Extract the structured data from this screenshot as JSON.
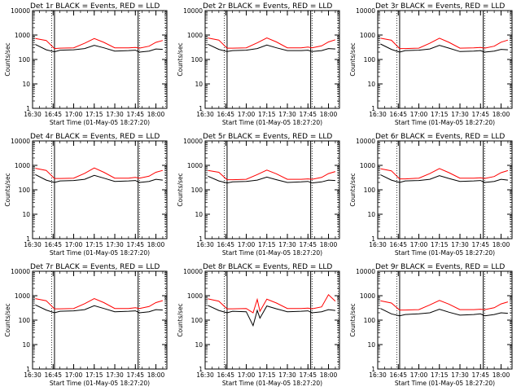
{
  "figure": {
    "xlabel": "Start Time (01-May-05 18:27:20)",
    "ylabel": "Counts/sec"
  },
  "chart_data": [
    {
      "type": "line",
      "title": "Det 1r  BLACK = Events, RED = LLD",
      "variant": 1,
      "x_ticks": [
        "16:30",
        "16:45",
        "17:00",
        "17:15",
        "17:30",
        "17:45",
        "18:00"
      ],
      "y_ticks": [
        "1",
        "10",
        "100",
        "1000",
        "10000"
      ],
      "y_scale": "log",
      "ylim": [
        1,
        10000
      ],
      "vlines_solid": [
        "16:46",
        "17:47"
      ],
      "vlines_dotted": [
        "16:44",
        "17:48",
        "18:07"
      ],
      "series": [
        {
          "name": "Events",
          "color": "#000000"
        },
        {
          "name": "LLD",
          "color": "#ff0000"
        }
      ],
      "samples": {
        "time": [
          "16:32",
          "16:40",
          "16:46",
          "16:50",
          "17:00",
          "17:08",
          "17:15",
          "17:22",
          "17:30",
          "17:40",
          "17:45",
          "17:48",
          "17:55",
          "18:00",
          "18:05"
        ],
        "events": [
          410,
          250,
          205,
          240,
          250,
          280,
          380,
          300,
          220,
          230,
          240,
          200,
          220,
          270,
          260
        ],
        "lld": [
          720,
          600,
          280,
          290,
          300,
          460,
          720,
          500,
          300,
          300,
          310,
          290,
          350,
          500,
          600
        ]
      }
    },
    {
      "type": "line",
      "title": "Det 2r  BLACK = Events, RED = LLD",
      "variant": 2,
      "x_ticks": [
        "16:30",
        "16:45",
        "17:00",
        "17:15",
        "17:30",
        "17:45",
        "18:00"
      ],
      "y_ticks": [
        "1",
        "10",
        "100",
        "1000",
        "10000"
      ],
      "y_scale": "log",
      "ylim": [
        1,
        10000
      ],
      "vlines_solid": [
        "16:46",
        "17:47"
      ],
      "vlines_dotted": [
        "16:44",
        "17:48",
        "18:07"
      ],
      "series": [
        {
          "name": "Events",
          "color": "#000000"
        },
        {
          "name": "LLD",
          "color": "#ff0000"
        }
      ],
      "samples": {
        "time": [
          "16:32",
          "16:40",
          "16:46",
          "16:50",
          "17:00",
          "17:08",
          "17:15",
          "17:22",
          "17:30",
          "17:40",
          "17:45",
          "17:48",
          "17:55",
          "18:00",
          "18:05"
        ],
        "events": [
          420,
          260,
          210,
          230,
          240,
          280,
          390,
          300,
          230,
          230,
          240,
          210,
          230,
          280,
          270
        ],
        "lld": [
          760,
          620,
          290,
          290,
          300,
          480,
          760,
          520,
          300,
          300,
          320,
          300,
          360,
          520,
          640
        ]
      }
    },
    {
      "type": "line",
      "title": "Det 3r  BLACK = Events, RED = LLD",
      "variant": 3,
      "x_ticks": [
        "16:30",
        "16:45",
        "17:00",
        "17:15",
        "17:30",
        "17:45",
        "18:00"
      ],
      "y_ticks": [
        "1",
        "10",
        "100",
        "1000",
        "10000"
      ],
      "y_scale": "log",
      "ylim": [
        1,
        10000
      ],
      "vlines_solid": [
        "16:46",
        "17:47"
      ],
      "vlines_dotted": [
        "16:44",
        "17:48",
        "18:07"
      ],
      "series": [
        {
          "name": "Events",
          "color": "#000000"
        },
        {
          "name": "LLD",
          "color": "#ff0000"
        }
      ],
      "samples": {
        "time": [
          "16:32",
          "16:40",
          "16:46",
          "16:50",
          "17:00",
          "17:08",
          "17:15",
          "17:22",
          "17:30",
          "17:40",
          "17:45",
          "17:48",
          "17:55",
          "18:00",
          "18:05"
        ],
        "events": [
          430,
          260,
          200,
          230,
          240,
          270,
          380,
          290,
          210,
          220,
          230,
          200,
          220,
          260,
          250
        ],
        "lld": [
          740,
          610,
          280,
          280,
          290,
          460,
          740,
          500,
          290,
          300,
          310,
          290,
          350,
          510,
          620
        ]
      }
    },
    {
      "type": "line",
      "title": "Det 4r  BLACK = Events, RED = LLD",
      "variant": 4,
      "x_ticks": [
        "16:30",
        "16:45",
        "17:00",
        "17:15",
        "17:30",
        "17:45",
        "18:00"
      ],
      "y_ticks": [
        "1",
        "10",
        "100",
        "1000",
        "10000"
      ],
      "y_scale": "log",
      "ylim": [
        1,
        10000
      ],
      "vlines_solid": [
        "16:46",
        "17:47"
      ],
      "vlines_dotted": [
        "16:44",
        "17:48",
        "18:07"
      ],
      "series": [
        {
          "name": "Events",
          "color": "#000000"
        },
        {
          "name": "LLD",
          "color": "#ff0000"
        }
      ],
      "samples": {
        "time": [
          "16:32",
          "16:40",
          "16:46",
          "16:50",
          "17:00",
          "17:08",
          "17:15",
          "17:22",
          "17:30",
          "17:40",
          "17:45",
          "17:48",
          "17:55",
          "18:00",
          "18:05"
        ],
        "events": [
          420,
          250,
          200,
          230,
          240,
          270,
          390,
          300,
          220,
          230,
          240,
          200,
          220,
          270,
          250
        ],
        "lld": [
          760,
          620,
          290,
          290,
          300,
          470,
          780,
          520,
          300,
          300,
          320,
          300,
          360,
          520,
          620
        ]
      }
    },
    {
      "type": "line",
      "title": "Det 5r  BLACK = Events, RED = LLD",
      "variant": 5,
      "x_ticks": [
        "16:30",
        "16:45",
        "17:00",
        "17:15",
        "17:30",
        "17:45",
        "18:00"
      ],
      "y_ticks": [
        "1",
        "10",
        "100",
        "1000",
        "10000"
      ],
      "y_scale": "log",
      "ylim": [
        1,
        10000
      ],
      "vlines_solid": [
        "16:46",
        "17:47"
      ],
      "vlines_dotted": [
        "16:44",
        "17:48",
        "18:07"
      ],
      "series": [
        {
          "name": "Events",
          "color": "#000000"
        },
        {
          "name": "LLD",
          "color": "#ff0000"
        }
      ],
      "samples": {
        "time": [
          "16:32",
          "16:40",
          "16:46",
          "16:50",
          "17:00",
          "17:08",
          "17:15",
          "17:22",
          "17:30",
          "17:40",
          "17:45",
          "17:48",
          "17:55",
          "18:00",
          "18:05"
        ],
        "events": [
          360,
          230,
          190,
          210,
          220,
          250,
          330,
          260,
          200,
          210,
          220,
          190,
          210,
          250,
          240
        ],
        "lld": [
          620,
          520,
          260,
          260,
          270,
          420,
          640,
          450,
          270,
          270,
          280,
          270,
          320,
          460,
          560
        ]
      }
    },
    {
      "type": "line",
      "title": "Det 6r  BLACK = Events, RED = LLD",
      "variant": 6,
      "x_ticks": [
        "16:30",
        "16:45",
        "17:00",
        "17:15",
        "17:30",
        "17:45",
        "18:00"
      ],
      "y_ticks": [
        "1",
        "10",
        "100",
        "1000",
        "10000"
      ],
      "y_scale": "log",
      "ylim": [
        1,
        10000
      ],
      "vlines_solid": [
        "16:46",
        "17:47"
      ],
      "vlines_dotted": [
        "16:44",
        "17:48",
        "18:07"
      ],
      "series": [
        {
          "name": "Events",
          "color": "#000000"
        },
        {
          "name": "LLD",
          "color": "#ff0000"
        }
      ],
      "samples": {
        "time": [
          "16:32",
          "16:40",
          "16:46",
          "16:50",
          "17:00",
          "17:08",
          "17:15",
          "17:22",
          "17:30",
          "17:40",
          "17:45",
          "17:48",
          "17:55",
          "18:00",
          "18:05"
        ],
        "events": [
          410,
          250,
          200,
          230,
          240,
          270,
          380,
          290,
          220,
          230,
          240,
          200,
          220,
          270,
          250
        ],
        "lld": [
          730,
          600,
          280,
          280,
          300,
          460,
          740,
          500,
          300,
          300,
          310,
          290,
          350,
          500,
          610
        ]
      }
    },
    {
      "type": "line",
      "title": "Det 7r  BLACK = Events, RED = LLD",
      "variant": 7,
      "x_ticks": [
        "16:30",
        "16:45",
        "17:00",
        "17:15",
        "17:30",
        "17:45",
        "18:00"
      ],
      "y_ticks": [
        "1",
        "10",
        "100",
        "1000",
        "10000"
      ],
      "y_scale": "log",
      "ylim": [
        1,
        10000
      ],
      "vlines_solid": [
        "16:46",
        "17:47"
      ],
      "vlines_dotted": [
        "16:44",
        "17:48",
        "18:07"
      ],
      "series": [
        {
          "name": "Events",
          "color": "#000000"
        },
        {
          "name": "LLD",
          "color": "#ff0000"
        }
      ],
      "samples": {
        "time": [
          "16:32",
          "16:40",
          "16:46",
          "16:50",
          "17:00",
          "17:08",
          "17:15",
          "17:22",
          "17:30",
          "17:40",
          "17:45",
          "17:48",
          "17:55",
          "18:00",
          "18:05"
        ],
        "events": [
          420,
          260,
          200,
          230,
          240,
          270,
          390,
          300,
          220,
          230,
          240,
          200,
          220,
          270,
          260
        ],
        "lld": [
          760,
          620,
          290,
          290,
          300,
          470,
          760,
          520,
          300,
          300,
          320,
          300,
          360,
          520,
          630
        ]
      }
    },
    {
      "type": "line",
      "title": "Det 8r  BLACK = Events, RED = LLD",
      "variant": 8,
      "x_ticks": [
        "16:30",
        "16:45",
        "17:00",
        "17:15",
        "17:30",
        "17:45",
        "18:00"
      ],
      "y_ticks": [
        "1",
        "10",
        "100",
        "1000",
        "10000"
      ],
      "y_scale": "log",
      "ylim": [
        1,
        10000
      ],
      "vlines_solid": [
        "16:46",
        "17:47"
      ],
      "vlines_dotted": [
        "16:44",
        "17:48",
        "18:07"
      ],
      "series": [
        {
          "name": "Events",
          "color": "#000000"
        },
        {
          "name": "LLD",
          "color": "#ff0000"
        }
      ],
      "samples": {
        "time": [
          "16:32",
          "16:40",
          "16:46",
          "16:50",
          "17:00",
          "17:05",
          "17:08",
          "17:10",
          "17:15",
          "17:22",
          "17:30",
          "17:40",
          "17:45",
          "17:48",
          "17:55",
          "18:00",
          "18:05"
        ],
        "events": [
          400,
          250,
          200,
          230,
          220,
          60,
          250,
          120,
          380,
          290,
          220,
          230,
          240,
          200,
          220,
          270,
          250
        ],
        "lld": [
          740,
          600,
          290,
          290,
          300,
          200,
          700,
          230,
          720,
          500,
          300,
          300,
          310,
          290,
          350,
          1100,
          600
        ]
      }
    },
    {
      "type": "line",
      "title": "Det 9r  BLACK = Events, RED = LLD",
      "variant": 9,
      "x_ticks": [
        "16:30",
        "16:45",
        "17:00",
        "17:15",
        "17:30",
        "17:45",
        "18:00"
      ],
      "y_ticks": [
        "1",
        "10",
        "100",
        "1000",
        "10000"
      ],
      "y_scale": "log",
      "ylim": [
        1,
        10000
      ],
      "vlines_solid": [
        "16:46",
        "17:47"
      ],
      "vlines_dotted": [
        "16:44",
        "17:48",
        "18:07"
      ],
      "series": [
        {
          "name": "Events",
          "color": "#000000"
        },
        {
          "name": "LLD",
          "color": "#ff0000"
        }
      ],
      "samples": {
        "time": [
          "16:32",
          "16:40",
          "16:46",
          "16:50",
          "17:00",
          "17:08",
          "17:15",
          "17:22",
          "17:30",
          "17:40",
          "17:45",
          "17:48",
          "17:55",
          "18:00",
          "18:05"
        ],
        "events": [
          300,
          180,
          150,
          170,
          180,
          200,
          280,
          210,
          160,
          170,
          180,
          150,
          170,
          200,
          190
        ],
        "lld": [
          620,
          500,
          260,
          260,
          270,
          420,
          640,
          450,
          270,
          270,
          280,
          270,
          320,
          460,
          560
        ]
      }
    }
  ]
}
